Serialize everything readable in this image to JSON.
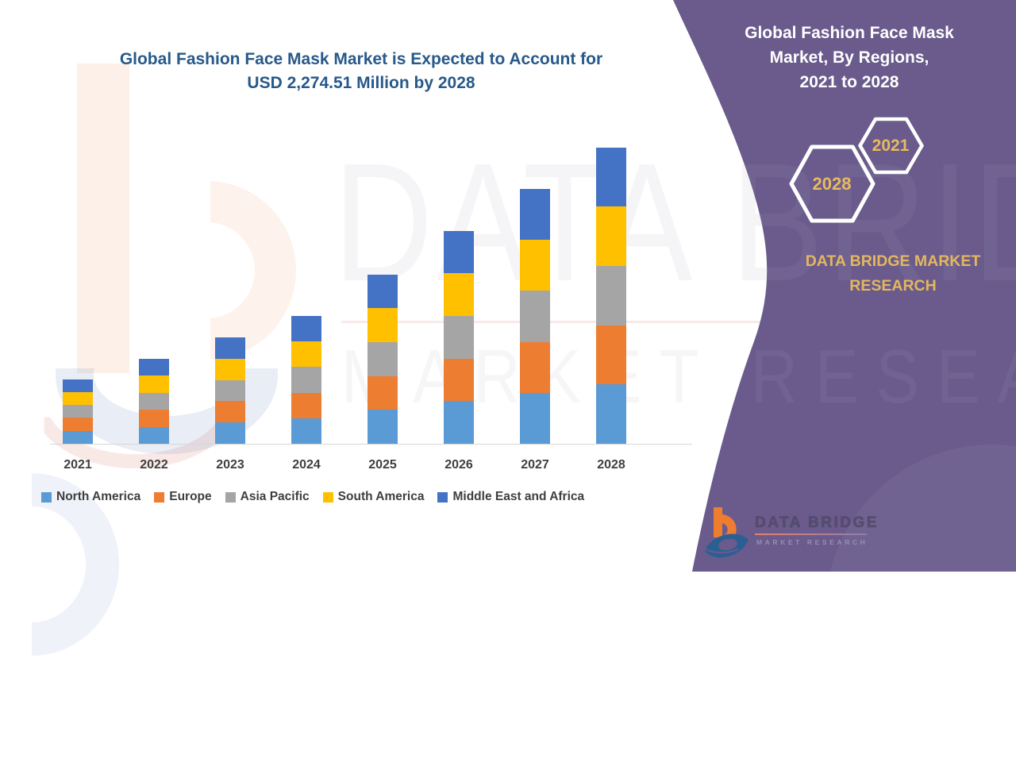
{
  "main_title": {
    "line1": "Global Fashion Face Mask Market is Expected to Account for",
    "line2": "USD 2,274.51 Million by 2028"
  },
  "chart_data": {
    "type": "bar",
    "stacked": true,
    "unit": "USD Million",
    "title": "Global Fashion Face Mask Market is Expected to Account for USD 2,274.51 Million by 2028",
    "categories": [
      "2021",
      "2022",
      "2023",
      "2024",
      "2025",
      "2026",
      "2027",
      "2028"
    ],
    "series": [
      {
        "name": "North America",
        "color": "#5B9BD5",
        "values": [
          99,
          131,
          163,
          196,
          260,
          327,
          391,
          455
        ]
      },
      {
        "name": "Europe",
        "color": "#ED7D31",
        "values": [
          99,
          131,
          163,
          196,
          260,
          327,
          391,
          455
        ]
      },
      {
        "name": "Asia Pacific",
        "color": "#A5A5A5",
        "values": [
          99,
          131,
          163,
          196,
          260,
          327,
          391,
          455
        ]
      },
      {
        "name": "South America",
        "color": "#FFC000",
        "values": [
          99,
          131,
          163,
          196,
          260,
          327,
          391,
          455
        ]
      },
      {
        "name": "Middle East and Africa",
        "color": "#4472C4",
        "values": [
          99,
          131,
          163,
          197,
          260,
          327,
          389,
          454.51
        ]
      }
    ],
    "totals_estimated": [
      495,
      655,
      815,
      981,
      1300,
      1635,
      1953,
      2274.51
    ],
    "xlabel": "",
    "ylabel": "",
    "y_axis_hidden": true,
    "gridlines": false,
    "legend_position": "bottom",
    "values_note": "segment values estimated from bar pixel heights; regions are nearly equal shares each year; 2028 total anchored to 2,274.51 from title"
  },
  "panel": {
    "title_lines": [
      "Global Fashion Face Mask",
      "Market, By Regions,",
      "2021 to 2028"
    ],
    "hex_top_year": "2021",
    "hex_bottom_year": "2028",
    "brand_lines": [
      "DATA BRIDGE MARKET",
      "RESEARCH"
    ],
    "colors": {
      "panel_purple": "#6a5b8c",
      "gold": "#e4b75e",
      "hex_stroke": "#ffffff"
    }
  },
  "logo": {
    "brand": "DATA BRIDGE",
    "sub": "MARKET RESEARCH"
  },
  "watermark": {
    "big_text": "DATA BRIDGE",
    "row2_text": "MARKET RESEARCH"
  }
}
